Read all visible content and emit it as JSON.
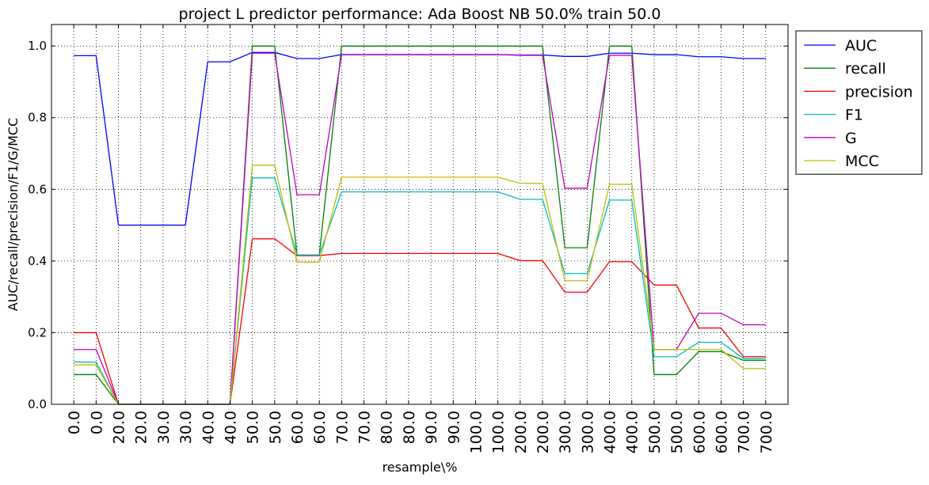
{
  "chart_data": {
    "type": "line",
    "title": "project L predictor performance: Ada Boost NB 50.0% train 50.0",
    "xlabel": "resample\\%",
    "ylabel": "AUC/recall/precision/F1/G/MCC",
    "categories": [
      "0.0",
      "0.0",
      "20.0",
      "20.0",
      "30.0",
      "30.0",
      "40.0",
      "40.0",
      "50.0",
      "50.0",
      "60.0",
      "60.0",
      "70.0",
      "70.0",
      "80.0",
      "80.0",
      "90.0",
      "90.0",
      "100.0",
      "100.0",
      "200.0",
      "200.0",
      "300.0",
      "300.0",
      "400.0",
      "400.0",
      "500.0",
      "500.0",
      "600.0",
      "600.0",
      "700.0",
      "700.0"
    ],
    "ylim": [
      0.0,
      1.06
    ],
    "yticks": [
      "0.0",
      "0.2",
      "0.4",
      "0.6",
      "0.8",
      "1.0"
    ],
    "grid": true,
    "legend_position": "outside-right",
    "series": [
      {
        "name": "AUC",
        "color": "#0000ff",
        "values": [
          0.973,
          0.973,
          0.5,
          0.5,
          0.5,
          0.5,
          0.956,
          0.956,
          0.982,
          0.982,
          0.965,
          0.965,
          0.976,
          0.976,
          0.976,
          0.976,
          0.976,
          0.976,
          0.976,
          0.976,
          0.975,
          0.975,
          0.971,
          0.971,
          0.98,
          0.98,
          0.976,
          0.976,
          0.97,
          0.97,
          0.965,
          0.965
        ]
      },
      {
        "name": "recall",
        "color": "#008000",
        "values": [
          0.083,
          0.083,
          0.0,
          0.0,
          0.0,
          0.0,
          0.0,
          0.0,
          1.0,
          1.0,
          0.417,
          0.417,
          1.0,
          1.0,
          1.0,
          1.0,
          1.0,
          1.0,
          1.0,
          1.0,
          1.0,
          1.0,
          0.437,
          0.437,
          1.0,
          1.0,
          0.083,
          0.083,
          0.147,
          0.147,
          0.123,
          0.123
        ]
      },
      {
        "name": "precision",
        "color": "#ff0000",
        "values": [
          0.2,
          0.2,
          0.0,
          0.0,
          0.0,
          0.0,
          0.0,
          0.0,
          0.462,
          0.462,
          0.415,
          0.415,
          0.421,
          0.421,
          0.421,
          0.421,
          0.421,
          0.421,
          0.421,
          0.421,
          0.401,
          0.401,
          0.313,
          0.313,
          0.398,
          0.398,
          0.333,
          0.333,
          0.213,
          0.213,
          0.133,
          0.133
        ]
      },
      {
        "name": "F1",
        "color": "#00bfbf",
        "values": [
          0.118,
          0.118,
          0.0,
          0.0,
          0.0,
          0.0,
          0.0,
          0.0,
          0.632,
          0.632,
          0.417,
          0.417,
          0.593,
          0.593,
          0.593,
          0.593,
          0.593,
          0.593,
          0.593,
          0.593,
          0.572,
          0.572,
          0.365,
          0.365,
          0.57,
          0.57,
          0.133,
          0.133,
          0.173,
          0.173,
          0.128,
          0.128
        ]
      },
      {
        "name": "G",
        "color": "#bf00bf",
        "values": [
          0.153,
          0.153,
          0.0,
          0.0,
          0.0,
          0.0,
          0.0,
          0.0,
          0.98,
          0.98,
          0.585,
          0.585,
          0.976,
          0.976,
          0.976,
          0.976,
          0.976,
          0.976,
          0.976,
          0.976,
          0.974,
          0.974,
          0.603,
          0.603,
          0.974,
          0.974,
          0.153,
          0.153,
          0.254,
          0.254,
          0.222,
          0.222
        ]
      },
      {
        "name": "MCC",
        "color": "#bfbf00",
        "values": [
          0.11,
          0.11,
          0.0,
          0.0,
          0.0,
          0.0,
          0.0,
          0.0,
          0.667,
          0.667,
          0.397,
          0.397,
          0.634,
          0.634,
          0.634,
          0.634,
          0.634,
          0.634,
          0.634,
          0.634,
          0.617,
          0.617,
          0.345,
          0.345,
          0.614,
          0.614,
          0.153,
          0.153,
          0.153,
          0.153,
          0.1,
          0.1
        ]
      }
    ]
  }
}
